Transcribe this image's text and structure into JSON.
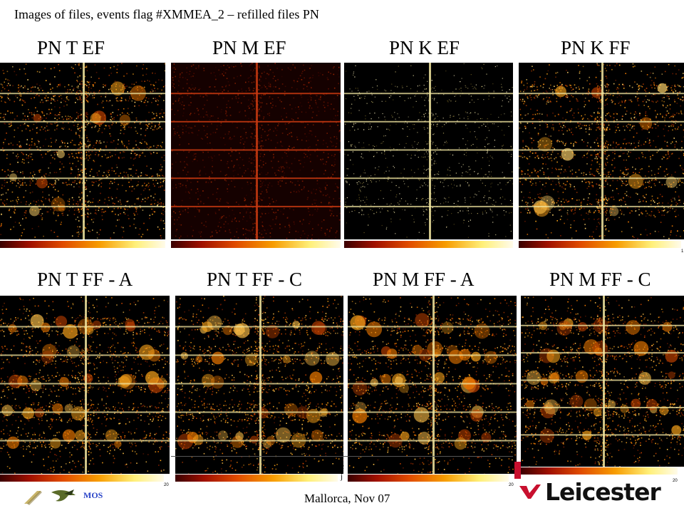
{
  "title": "Images of files, events flag #XMMEA_2 – refilled files PN",
  "top_row": [
    {
      "label": "PN T EF",
      "scale": "1"
    },
    {
      "label": "PN M EF",
      "scale": "1"
    },
    {
      "label": "PN K EF",
      "scale": "1"
    },
    {
      "label": "PN K FF",
      "scale": "1"
    }
  ],
  "bottom_row": [
    {
      "label": "PN T FF - A",
      "scale": "20"
    },
    {
      "label": "PN T FF - C",
      "scale": "20"
    },
    {
      "label": "PN M FF - A",
      "scale": "20"
    },
    {
      "label": "PN M FF - C",
      "scale": "20"
    }
  ],
  "footer": {
    "venue": "Mallorca, Nov 07",
    "mos_label": "MOS",
    "logo_text": "Leicester",
    "fragment": "c j"
  },
  "colors": {
    "background": "#000000",
    "hot": "#f79c00",
    "line": "#f2e6a0",
    "brand_red": "#c8102e"
  }
}
